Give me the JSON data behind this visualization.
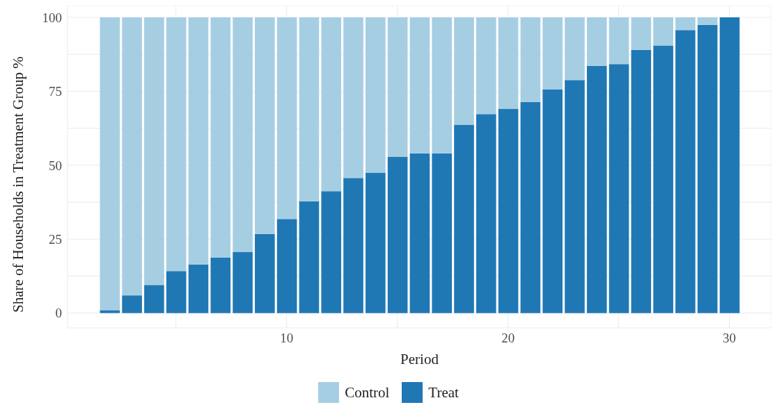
{
  "chart_data": {
    "type": "bar",
    "stacked": true,
    "xlabel": "Period",
    "ylabel": "Share of Households in Treatment Group %",
    "x": [
      2,
      3,
      4,
      5,
      6,
      7,
      8,
      9,
      10,
      11,
      12,
      13,
      14,
      15,
      16,
      17,
      18,
      19,
      20,
      21,
      22,
      23,
      24,
      25,
      26,
      27,
      28,
      29,
      30
    ],
    "series": [
      {
        "name": "Treat",
        "color": "#1f78b4",
        "values": [
          1,
          6,
          9.5,
          14.2,
          16.4,
          18.7,
          20.7,
          26.8,
          31.8,
          37.8,
          41.2,
          45.7,
          47.5,
          52.9,
          54,
          54,
          63.7,
          67.3,
          69.1,
          71.4,
          75.7,
          78.8,
          83.6,
          84.2,
          89,
          90.5,
          95.7,
          97.5,
          100
        ]
      },
      {
        "name": "Control",
        "color": "#a6cee3",
        "values": [
          99,
          94,
          90.5,
          85.8,
          83.6,
          81.3,
          79.3,
          73.2,
          68.2,
          62.2,
          58.8,
          54.3,
          52.5,
          47.1,
          46,
          46,
          36.3,
          32.7,
          30.9,
          28.6,
          24.3,
          21.2,
          16.4,
          15.8,
          11,
          9.5,
          4.3,
          2.5,
          0
        ]
      }
    ],
    "xlim": [
      0.1,
      31.9
    ],
    "xticks": [
      {
        "value": 5,
        "label": null
      },
      10,
      {
        "value": 15,
        "label": null
      },
      20,
      {
        "value": 25,
        "label": null
      },
      30
    ],
    "ylim": [
      -5,
      104
    ],
    "yticks": [
      0,
      {
        "value": 12.5,
        "label": null
      },
      25,
      {
        "value": 37.5,
        "label": null
      },
      50,
      {
        "value": 62.5,
        "label": null
      },
      75,
      {
        "value": 87.5,
        "label": null
      },
      100
    ],
    "grid": true,
    "legend": "bottom"
  }
}
